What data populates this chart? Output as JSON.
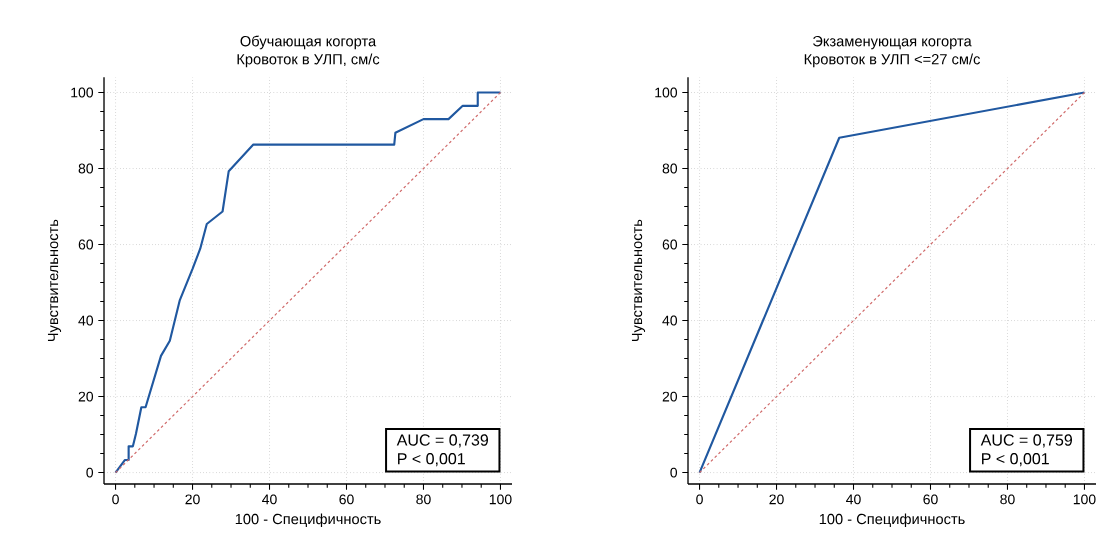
{
  "chart_data": [
    {
      "type": "line",
      "title": "Обучающая когорта",
      "subtitle": "Кровоток в УЛП, см/с",
      "xlabel": "100 - Специфичность",
      "ylabel": "Чувствительность",
      "annotations": [
        "AUC = 0,739",
        "P < 0,001"
      ],
      "xlim": [
        -3,
        103
      ],
      "ylim": [
        -3,
        104
      ],
      "xticks": [
        0,
        20,
        40,
        60,
        80,
        100
      ],
      "yticks": [
        0,
        20,
        40,
        60,
        80,
        100
      ],
      "grid": true,
      "series": [
        {
          "color": "#2058a0",
          "line_style": "solid",
          "x": [
            0,
            2.4,
            3.4,
            3.4,
            4.5,
            5.3,
            6.7,
            7.8,
            11.8,
            14.1,
            16.7,
            20,
            22,
            23.7,
            27.8,
            29.4,
            35.8,
            72.4,
            72.7,
            80,
            86.5,
            90.2,
            94.1,
            94.1,
            100
          ],
          "values": [
            0,
            3.3,
            3.3,
            6.9,
            6.9,
            10.2,
            17.2,
            17.2,
            30.7,
            34.7,
            45.4,
            53.6,
            58.9,
            65.4,
            68.7,
            79.3,
            86.3,
            86.3,
            89.4,
            93,
            93,
            96.5,
            96.5,
            100,
            100
          ]
        },
        {
          "color": "#d06a6a",
          "line_style": "dotted",
          "x": [
            0,
            100
          ],
          "values": [
            0,
            100
          ]
        }
      ]
    },
    {
      "type": "line",
      "title": "Экзаменующая когорта",
      "subtitle": "Кровоток в УЛП <=27 см/с",
      "xlabel": "100 - Специфичность",
      "ylabel": "Чувствительность",
      "annotations": [
        "AUC = 0,759",
        "P < 0,001"
      ],
      "xlim": [
        -3,
        103
      ],
      "ylim": [
        -3,
        104
      ],
      "xticks": [
        0,
        20,
        40,
        60,
        80,
        100
      ],
      "yticks": [
        0,
        20,
        40,
        60,
        80,
        100
      ],
      "grid": true,
      "series": [
        {
          "color": "#2058a0",
          "line_style": "solid",
          "x": [
            0,
            36.3,
            100
          ],
          "values": [
            0,
            88.1,
            100
          ]
        },
        {
          "color": "#d06a6a",
          "line_style": "dotted",
          "x": [
            0,
            100
          ],
          "values": [
            0,
            100
          ]
        }
      ]
    }
  ]
}
